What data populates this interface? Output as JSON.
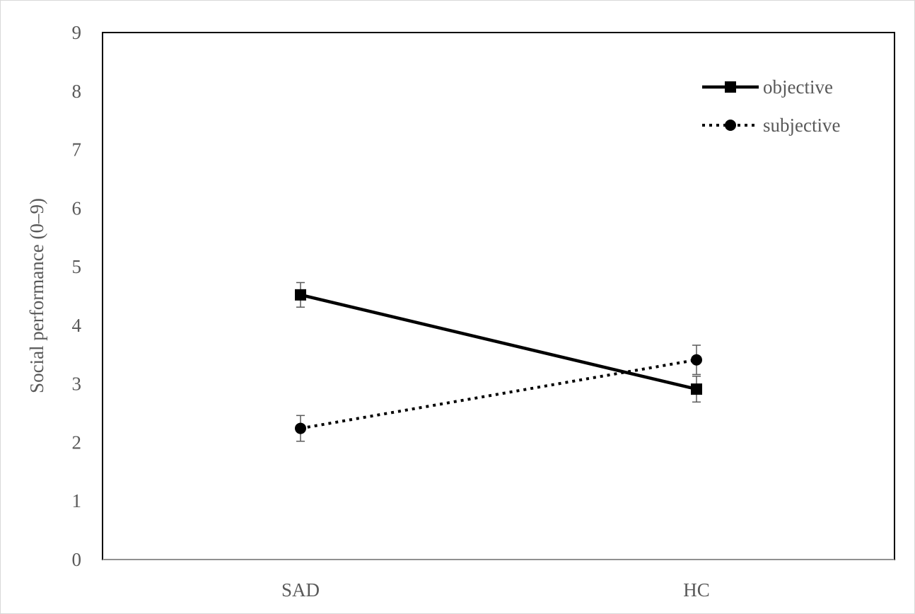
{
  "chart_data": {
    "type": "line",
    "ylabel": "Social performance (0–9)",
    "xlabel": "",
    "categories": [
      "SAD",
      "HC"
    ],
    "ylim": [
      0,
      9
    ],
    "yticks": [
      "0",
      "1",
      "2",
      "3",
      "4",
      "5",
      "6",
      "7",
      "8",
      "9"
    ],
    "grid": false,
    "legend_position": "top-right",
    "series": [
      {
        "name": "objective",
        "values": [
          4.52,
          2.91
        ],
        "error": [
          0.21,
          0.22
        ],
        "line_style": "solid",
        "marker": "square",
        "color": "#000000"
      },
      {
        "name": "subjective",
        "values": [
          2.24,
          3.41
        ],
        "error": [
          0.22,
          0.25
        ],
        "line_style": "dotted",
        "marker": "circle",
        "color": "#000000"
      }
    ]
  }
}
